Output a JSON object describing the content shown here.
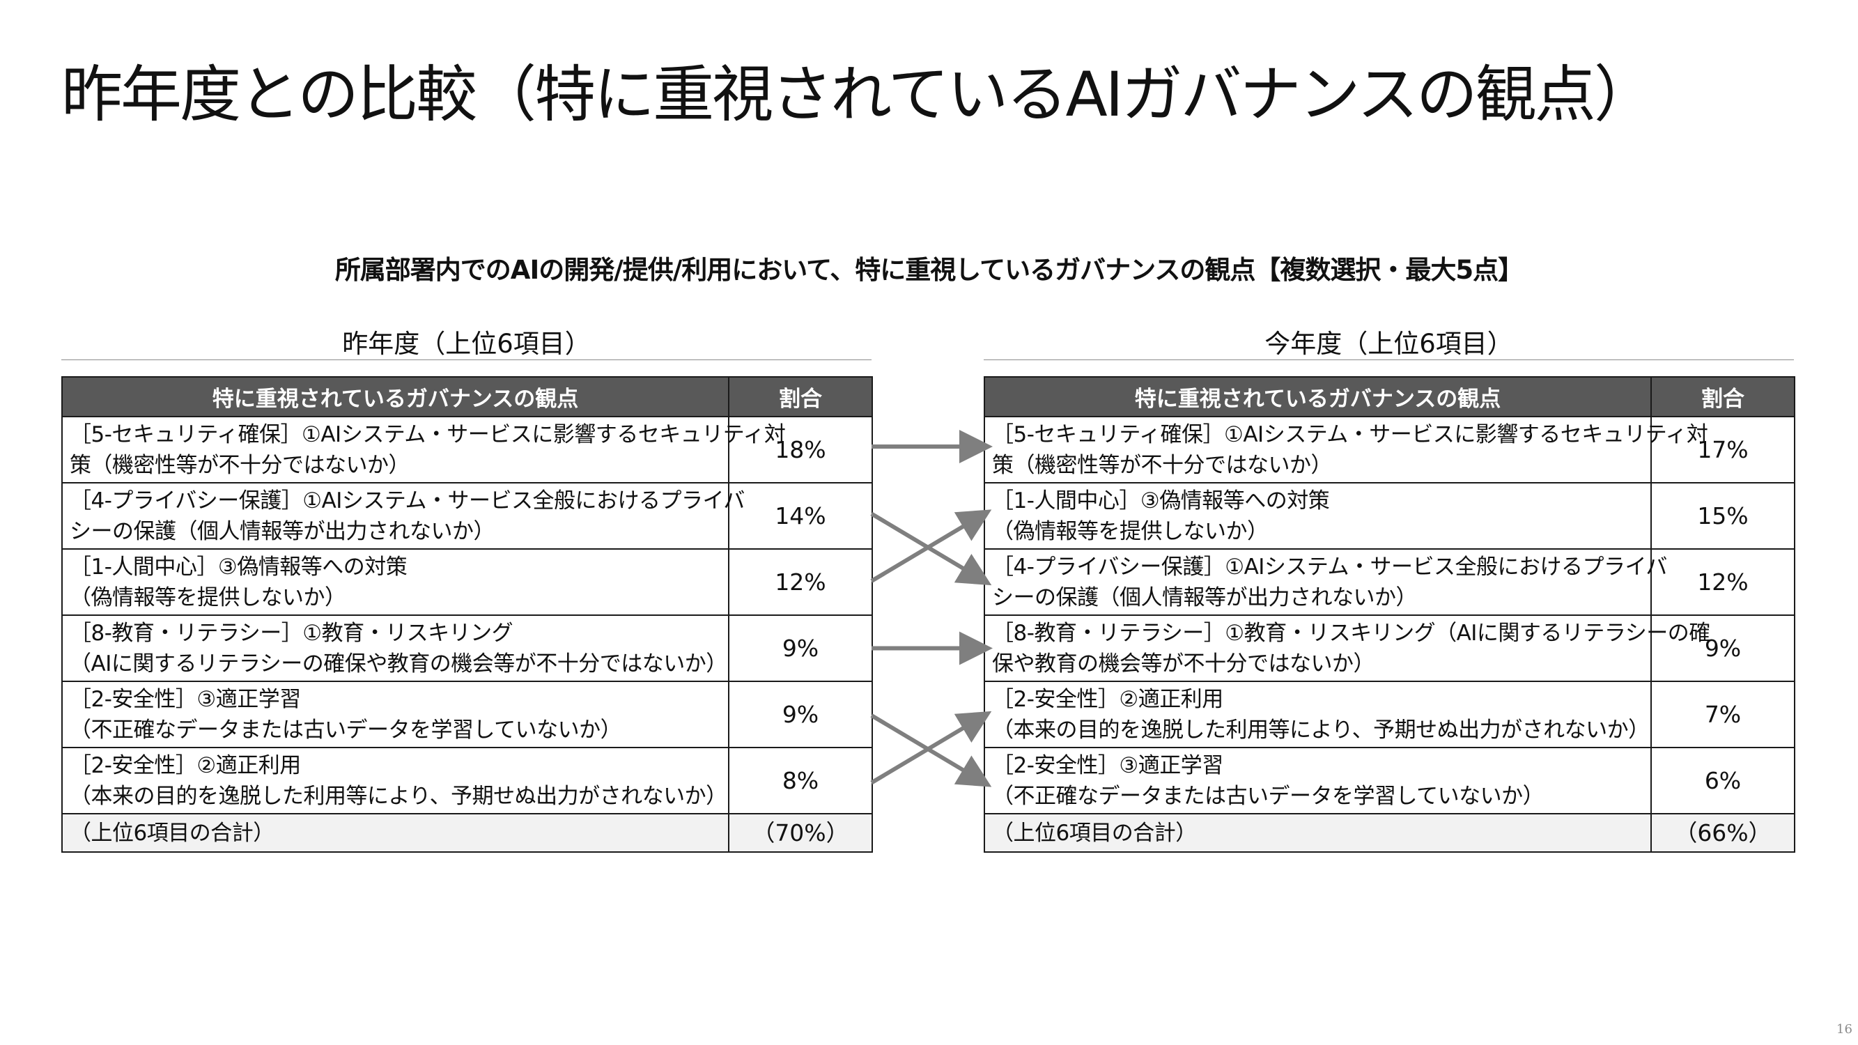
{
  "slide": {
    "title": "昨年度との比較（特に重視されているAIガバナンスの観点）",
    "subtitle": "所属部署内でのAIの開発/提供/利用において、特に重視しているガバナンスの観点【複数選択・最大5点】",
    "page_number": "16"
  },
  "last_year": {
    "heading": "昨年度（上位6項目）",
    "col_item": "特に重視されているガバナンスの観点",
    "col_share": "割合",
    "rows": [
      {
        "line1": "［5-セキュリティ確保］①AIシステム・サービスに影響するセキュリティ対",
        "line2": "策（機密性等が不十分ではないか）",
        "share": "18%"
      },
      {
        "line1": "［4-プライバシー保護］①AIシステム・サービス全般におけるプライバ",
        "line2": "シーの保護（個人情報等が出力されないか）",
        "share": "14%"
      },
      {
        "line1": "［1-人間中心］③偽情報等への対策",
        "line2": "（偽情報等を提供しないか）",
        "share": "12%"
      },
      {
        "line1": "［8-教育・リテラシー］①教育・リスキリング",
        "line2": "（AIに関するリテラシーの確保や教育の機会等が不十分ではないか）",
        "share": "9%"
      },
      {
        "line1": "［2-安全性］③適正学習",
        "line2": "（不正確なデータまたは古いデータを学習していないか）",
        "share": "9%"
      },
      {
        "line1": "［2-安全性］②適正利用",
        "line2": "（本来の目的を逸脱した利用等により、予期せぬ出力がされないか）",
        "share": "8%"
      }
    ],
    "total_label": "（上位6項目の合計）",
    "total_share": "（70%）"
  },
  "this_year": {
    "heading": "今年度（上位6項目）",
    "col_item": "特に重視されているガバナンスの観点",
    "col_share": "割合",
    "rows": [
      {
        "line1": "［5-セキュリティ確保］①AIシステム・サービスに影響するセキュリティ対",
        "line2": "策（機密性等が不十分ではないか）",
        "share": "17%"
      },
      {
        "line1": "［1-人間中心］③偽情報等への対策",
        "line2": "（偽情報等を提供しないか）",
        "share": "15%"
      },
      {
        "line1": "［4-プライバシー保護］①AIシステム・サービス全般におけるプライバ",
        "line2": "シーの保護（個人情報等が出力されないか）",
        "share": "12%"
      },
      {
        "line1": "［8-教育・リテラシー］①教育・リスキリング（AIに関するリテラシーの確",
        "line2": "保や教育の機会等が不十分ではないか）",
        "share": "9%"
      },
      {
        "line1": "［2-安全性］②適正利用",
        "line2": "（本来の目的を逸脱した利用等により、予期せぬ出力がされないか）",
        "share": "7%"
      },
      {
        "line1": "［2-安全性］③適正学習",
        "line2": "（不正確なデータまたは古いデータを学習していないか）",
        "share": "6%"
      }
    ],
    "total_label": "（上位6項目の合計）",
    "total_share": "（66%）"
  },
  "rank_mapping": [
    {
      "from_row": 1,
      "to_row": 1
    },
    {
      "from_row": 2,
      "to_row": 3
    },
    {
      "from_row": 3,
      "to_row": 2
    },
    {
      "from_row": 4,
      "to_row": 4
    },
    {
      "from_row": 5,
      "to_row": 6
    },
    {
      "from_row": 6,
      "to_row": 5
    }
  ],
  "colors": {
    "header_bg": "#595959",
    "header_text": "#ffffff",
    "total_row_bg": "#f2f2f2",
    "arrow": "#7f7f7f"
  }
}
